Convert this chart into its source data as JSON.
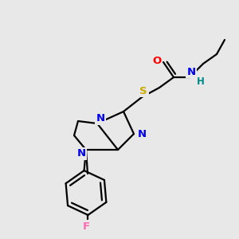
{
  "bg_color": "#e8e8e8",
  "atom_colors": {
    "N": "#0000ee",
    "O": "#ff0000",
    "S": "#ccaa00",
    "F": "#ff69b4",
    "C": "#000000",
    "H": "#008888"
  },
  "bond_color": "#000000",
  "bond_width": 1.6,
  "figsize": [
    3.0,
    3.0
  ],
  "dpi": 100
}
